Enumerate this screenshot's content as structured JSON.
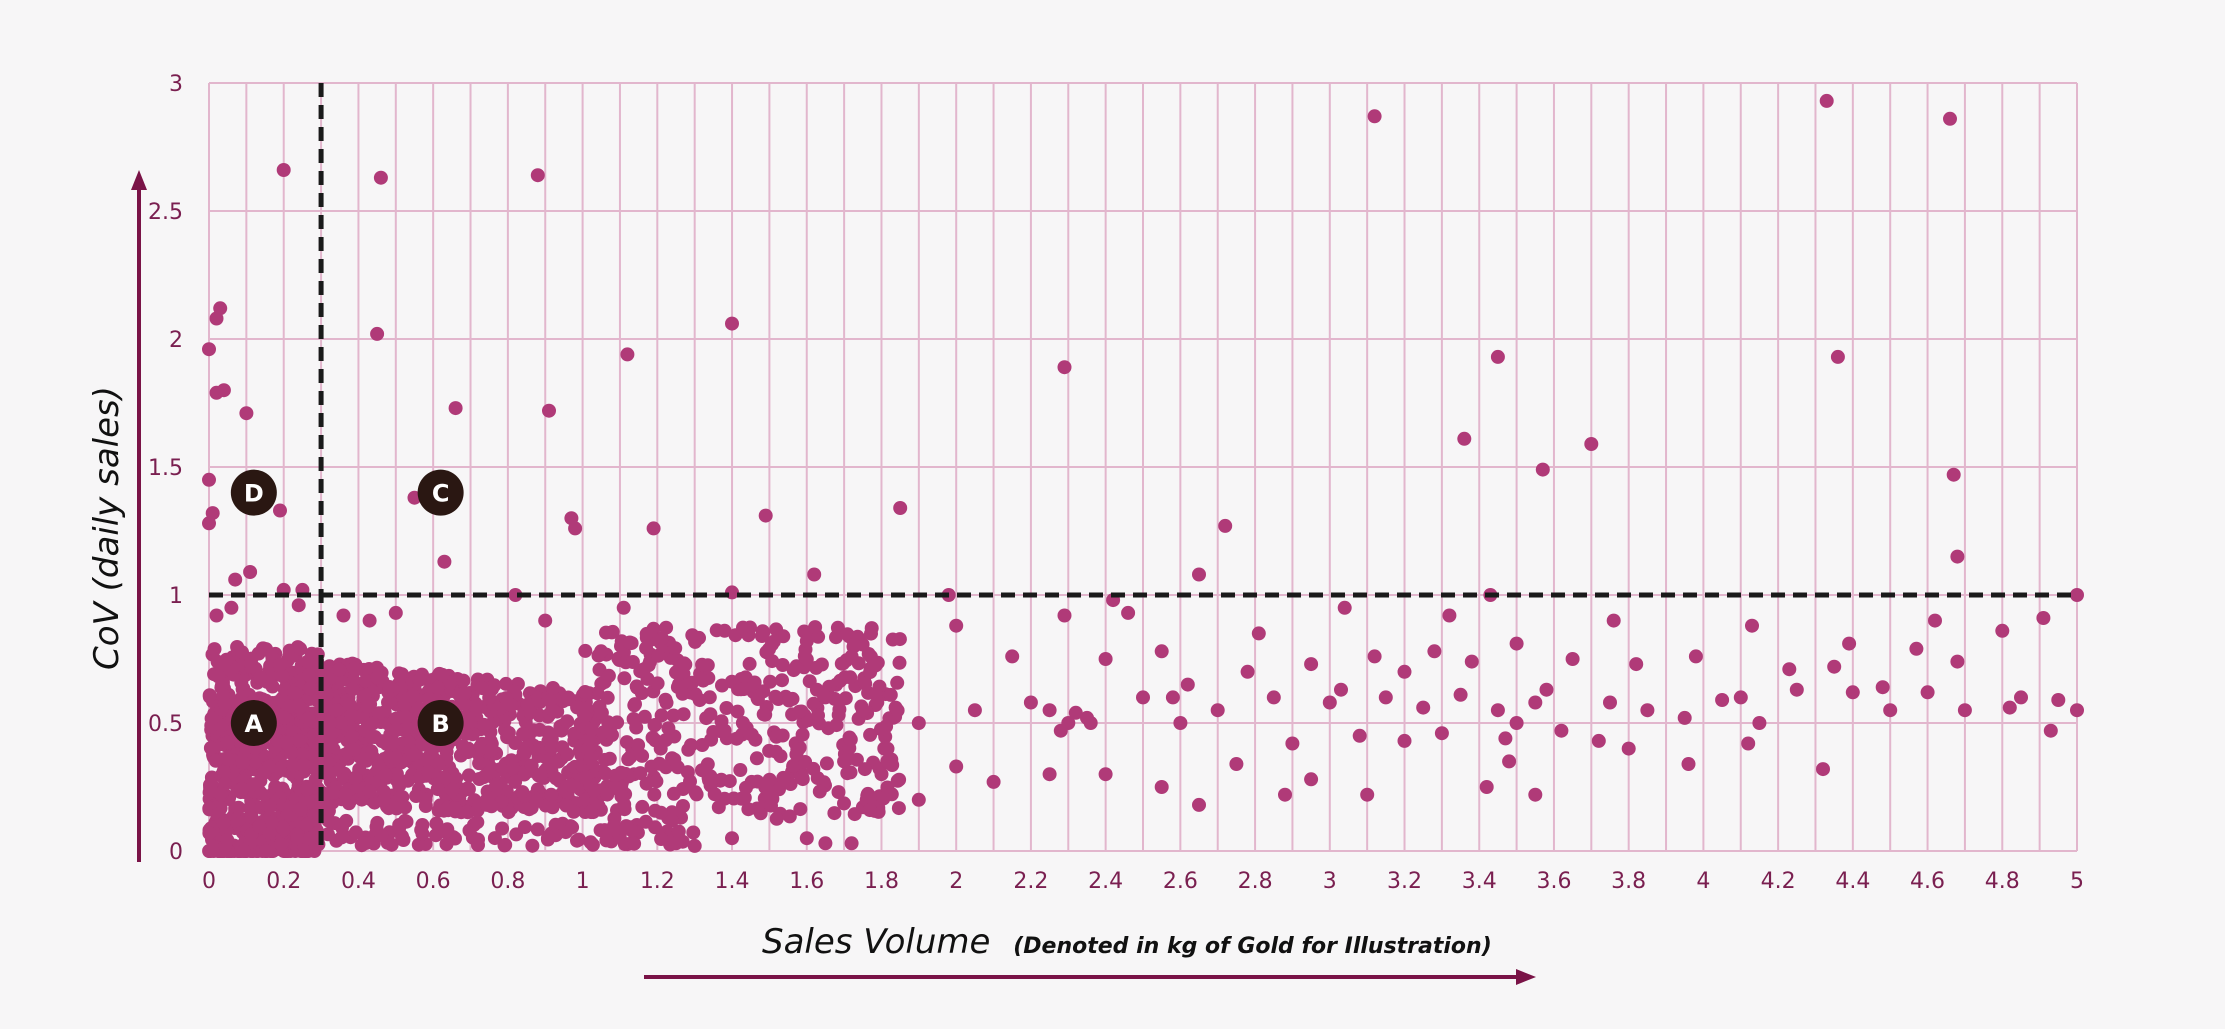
{
  "colors": {
    "background": "#f7f6f7",
    "grid": "#e2b6cd",
    "point": "#b03a78",
    "axis": "#7a1347",
    "tick_label": "#7a1f50",
    "threshold_line": "#1a1a1a",
    "marker_fill": "#2a1712"
  },
  "chart_data": {
    "type": "scatter",
    "title": "",
    "xlabel_main": "Sales Volume",
    "xlabel_sub": "(Denoted in kg of Gold for Illustration)",
    "ylabel": "CoV (daily sales)",
    "xlim": [
      0,
      5
    ],
    "ylim": [
      0,
      3
    ],
    "x_ticks": [
      {
        "value": 0,
        "label": "0"
      },
      {
        "value": 0.2,
        "label": "0.2"
      },
      {
        "value": 0.4,
        "label": "0.4"
      },
      {
        "value": 0.6,
        "label": "0.6"
      },
      {
        "value": 0.8,
        "label": "0.8"
      },
      {
        "value": 1,
        "label": "1"
      },
      {
        "value": 1.2,
        "label": "1.2"
      },
      {
        "value": 1.4,
        "label": "1.4"
      },
      {
        "value": 1.6,
        "label": "1.6"
      },
      {
        "value": 1.8,
        "label": "1.8"
      },
      {
        "value": 2,
        "label": "2"
      },
      {
        "value": 2.2,
        "label": "2.2"
      },
      {
        "value": 2.4,
        "label": "2.4"
      },
      {
        "value": 2.6,
        "label": "2.6"
      },
      {
        "value": 2.8,
        "label": "2.8"
      },
      {
        "value": 3,
        "label": "3"
      },
      {
        "value": 3.2,
        "label": "3.2"
      },
      {
        "value": 3.4,
        "label": "3.4"
      },
      {
        "value": 3.6,
        "label": "3.6"
      },
      {
        "value": 3.8,
        "label": "3.8"
      },
      {
        "value": 4,
        "label": "4"
      },
      {
        "value": 4.2,
        "label": "4.2"
      },
      {
        "value": 4.4,
        "label": "4.4"
      },
      {
        "value": 4.6,
        "label": "4.6"
      },
      {
        "value": 4.8,
        "label": "4.8"
      },
      {
        "value": 5,
        "label": "5"
      }
    ],
    "y_ticks": [
      {
        "value": 0,
        "label": "0"
      },
      {
        "value": 0.5,
        "label": "0.5"
      },
      {
        "value": 1,
        "label": "1"
      },
      {
        "value": 1.5,
        "label": "1.5"
      },
      {
        "value": 2,
        "label": "2"
      },
      {
        "value": 2.5,
        "label": "2.5"
      },
      {
        "value": 3,
        "label": "3"
      }
    ],
    "grid": true,
    "thresholds": {
      "x": 0.3,
      "y": 1
    },
    "quadrant_markers": [
      {
        "label": "A",
        "x": 0.12,
        "y": 0.5
      },
      {
        "label": "B",
        "x": 0.62,
        "y": 0.5
      },
      {
        "label": "C",
        "x": 0.62,
        "y": 1.4
      },
      {
        "label": "D",
        "x": 0.12,
        "y": 1.4
      }
    ],
    "points": [
      [
        0.0,
        1.96
      ],
      [
        0.02,
        2.08
      ],
      [
        0.03,
        2.12
      ],
      [
        0.02,
        1.79
      ],
      [
        0.04,
        1.8
      ],
      [
        0.1,
        1.71
      ],
      [
        0.0,
        1.45
      ],
      [
        0.01,
        1.32
      ],
      [
        0.0,
        1.28
      ],
      [
        0.19,
        1.33
      ],
      [
        0.2,
        2.66
      ],
      [
        0.46,
        2.63
      ],
      [
        0.45,
        2.02
      ],
      [
        0.66,
        1.73
      ],
      [
        0.88,
        2.64
      ],
      [
        0.91,
        1.72
      ],
      [
        0.55,
        1.38
      ],
      [
        0.63,
        1.13
      ],
      [
        0.97,
        1.3
      ],
      [
        0.98,
        1.26
      ],
      [
        1.12,
        1.94
      ],
      [
        1.19,
        1.26
      ],
      [
        1.4,
        2.06
      ],
      [
        1.49,
        1.31
      ],
      [
        1.62,
        1.08
      ],
      [
        1.85,
        1.34
      ],
      [
        2.29,
        1.89
      ],
      [
        2.65,
        1.08
      ],
      [
        2.72,
        1.27
      ],
      [
        3.12,
        2.87
      ],
      [
        3.36,
        1.61
      ],
      [
        3.45,
        1.93
      ],
      [
        3.57,
        1.49
      ],
      [
        3.7,
        1.59
      ],
      [
        4.33,
        2.93
      ],
      [
        4.36,
        1.93
      ],
      [
        4.66,
        2.86
      ],
      [
        4.67,
        1.47
      ],
      [
        4.68,
        1.15
      ],
      [
        0.07,
        1.06
      ],
      [
        0.11,
        1.09
      ],
      [
        0.2,
        1.02
      ],
      [
        0.25,
        1.02
      ],
      [
        0.82,
        1.0
      ],
      [
        1.4,
        1.01
      ],
      [
        1.98,
        1.0
      ],
      [
        2.42,
        0.98
      ],
      [
        3.43,
        1.0
      ],
      [
        5.0,
        1.0
      ],
      [
        0.02,
        0.92
      ],
      [
        0.06,
        0.95
      ],
      [
        0.24,
        0.96
      ],
      [
        0.36,
        0.92
      ],
      [
        0.43,
        0.9
      ],
      [
        0.5,
        0.93
      ],
      [
        0.9,
        0.9
      ],
      [
        1.11,
        0.95
      ],
      [
        1.38,
        0.86
      ],
      [
        1.48,
        0.84
      ],
      [
        2.0,
        0.88
      ],
      [
        2.29,
        0.92
      ],
      [
        2.46,
        0.93
      ],
      [
        2.81,
        0.85
      ],
      [
        3.04,
        0.95
      ],
      [
        3.32,
        0.92
      ],
      [
        3.76,
        0.9
      ],
      [
        4.13,
        0.88
      ],
      [
        4.62,
        0.9
      ],
      [
        4.91,
        0.91
      ],
      [
        4.8,
        0.86
      ],
      [
        4.39,
        0.81
      ],
      [
        1.6,
        0.82
      ],
      [
        1.72,
        0.76
      ],
      [
        2.15,
        0.76
      ],
      [
        2.4,
        0.75
      ],
      [
        2.55,
        0.78
      ],
      [
        2.78,
        0.7
      ],
      [
        2.95,
        0.73
      ],
      [
        3.12,
        0.76
      ],
      [
        3.2,
        0.7
      ],
      [
        3.28,
        0.78
      ],
      [
        3.38,
        0.74
      ],
      [
        3.5,
        0.81
      ],
      [
        3.65,
        0.75
      ],
      [
        3.82,
        0.73
      ],
      [
        3.98,
        0.76
      ],
      [
        4.1,
        0.6
      ],
      [
        4.23,
        0.71
      ],
      [
        4.35,
        0.72
      ],
      [
        4.48,
        0.64
      ],
      [
        4.57,
        0.79
      ],
      [
        4.68,
        0.74
      ],
      [
        4.85,
        0.6
      ],
      [
        4.95,
        0.59
      ],
      [
        1.65,
        0.6
      ],
      [
        1.75,
        0.55
      ],
      [
        1.9,
        0.5
      ],
      [
        2.05,
        0.55
      ],
      [
        2.2,
        0.58
      ],
      [
        2.35,
        0.52
      ],
      [
        2.5,
        0.6
      ],
      [
        2.6,
        0.5
      ],
      [
        2.7,
        0.55
      ],
      [
        2.85,
        0.6
      ],
      [
        2.9,
        0.42
      ],
      [
        3.0,
        0.58
      ],
      [
        3.08,
        0.45
      ],
      [
        3.15,
        0.6
      ],
      [
        3.25,
        0.56
      ],
      [
        3.35,
        0.61
      ],
      [
        3.45,
        0.55
      ],
      [
        3.55,
        0.58
      ],
      [
        3.62,
        0.47
      ],
      [
        3.75,
        0.58
      ],
      [
        3.85,
        0.55
      ],
      [
        3.95,
        0.52
      ],
      [
        4.05,
        0.59
      ],
      [
        4.15,
        0.5
      ],
      [
        4.25,
        0.63
      ],
      [
        4.4,
        0.62
      ],
      [
        4.5,
        0.55
      ],
      [
        4.6,
        0.62
      ],
      [
        4.7,
        0.55
      ],
      [
        4.82,
        0.56
      ],
      [
        4.93,
        0.47
      ],
      [
        5.0,
        0.55
      ],
      [
        1.7,
        0.35
      ],
      [
        1.8,
        0.3
      ],
      [
        1.9,
        0.2
      ],
      [
        2.0,
        0.33
      ],
      [
        2.1,
        0.27
      ],
      [
        2.25,
        0.3
      ],
      [
        2.4,
        0.3
      ],
      [
        2.55,
        0.25
      ],
      [
        2.65,
        0.18
      ],
      [
        2.75,
        0.34
      ],
      [
        2.88,
        0.22
      ],
      [
        2.95,
        0.28
      ],
      [
        3.1,
        0.22
      ],
      [
        3.2,
        0.43
      ],
      [
        3.3,
        0.46
      ],
      [
        3.42,
        0.25
      ],
      [
        3.48,
        0.35
      ],
      [
        3.55,
        0.22
      ],
      [
        3.72,
        0.43
      ],
      [
        3.8,
        0.4
      ],
      [
        3.96,
        0.34
      ],
      [
        4.12,
        0.42
      ],
      [
        4.32,
        0.32
      ],
      [
        1.6,
        0.05
      ],
      [
        1.65,
        0.03
      ],
      [
        1.72,
        0.03
      ],
      [
        1.4,
        0.05
      ],
      [
        1.25,
        0.03
      ],
      [
        1.3,
        0.02
      ],
      [
        2.3,
        0.5
      ],
      [
        2.28,
        0.47
      ],
      [
        2.32,
        0.54
      ],
      [
        2.36,
        0.5
      ],
      [
        2.25,
        0.55
      ],
      [
        3.58,
        0.63
      ],
      [
        3.5,
        0.5
      ],
      [
        3.47,
        0.44
      ],
      [
        3.03,
        0.63
      ],
      [
        2.62,
        0.65
      ],
      [
        2.58,
        0.6
      ]
    ]
  }
}
